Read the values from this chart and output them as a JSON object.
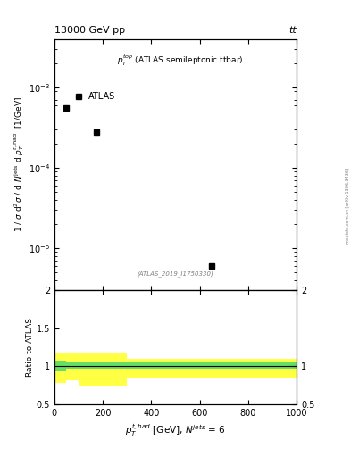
{
  "title_left": "13000 GeV pp",
  "title_right": "tt",
  "annotation": "$p_T^{top}$ (ATLAS semileptonic ttbar)",
  "reference": "(ATLAS_2019_I1750330)",
  "ylabel_main": "1 / σ d²σ / d N⁽ʲᵗˢ d p_Tᵗʺʰᵃᵈ  [1/GeV]",
  "ylabel_ratio": "Ratio to ATLAS",
  "xlabel": "$p_T^{t,had}$ [GeV], $N^{jets}$ = 6",
  "right_label": "mcplots.cern.ch [arXiv:1306.3436]",
  "data_x": [
    50,
    175,
    650
  ],
  "data_y": [
    0.00055,
    0.00028,
    6e-06
  ],
  "ylim_main": [
    3e-06,
    0.004
  ],
  "xlim": [
    0,
    1000
  ],
  "ylim_ratio": [
    0.5,
    2.0
  ],
  "ratio_band_edges": [
    0,
    50,
    100,
    300,
    1000
  ],
  "ratio_band_green_low": [
    0.93,
    0.97,
    0.97,
    0.97,
    0.97
  ],
  "ratio_band_green_high": [
    1.07,
    1.05,
    1.05,
    1.05,
    1.05
  ],
  "ratio_band_yellow_low": [
    0.78,
    0.82,
    0.73,
    0.85,
    0.85
  ],
  "ratio_band_yellow_high": [
    1.18,
    1.18,
    1.18,
    1.1,
    1.1
  ],
  "color_data": "#000000",
  "color_green": "#66dd66",
  "color_yellow": "#ffff44",
  "marker": "s",
  "markersize": 5
}
